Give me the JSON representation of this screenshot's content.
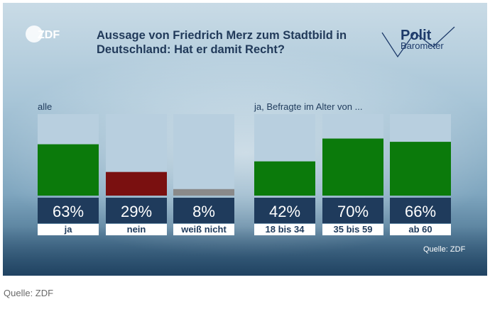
{
  "header": {
    "broadcaster": "ZDF",
    "title": "Aussage von Friedrich Merz zum Stadtbild in Deutschland: Hat er damit Recht?",
    "title_line1": "Aussage von Friedrich Merz zum Stadtbild in",
    "title_line2": "Deutschland: Hat er damit Recht?",
    "program_logo": {
      "line1": "Polit",
      "line2": "Barometer"
    }
  },
  "source_inner": "Quelle: ZDF",
  "caption_source": "Quelle: ZDF",
  "colors": {
    "yes": "#0b7a0b",
    "no": "#7a1010",
    "dont_know": "#8a8a8a",
    "track": "#b8cfdf",
    "value_box": "#1f3b5c"
  },
  "chart_data": {
    "type": "bar",
    "ylim": [
      0,
      100
    ],
    "groups": [
      {
        "label": "alle",
        "bars": [
          {
            "category": "ja",
            "value": 63,
            "value_label": "63%",
            "color": "#0b7a0b"
          },
          {
            "category": "nein",
            "value": 29,
            "value_label": "29%",
            "color": "#7a1010"
          },
          {
            "category": "weiß nicht",
            "value": 8,
            "value_label": "8%",
            "color": "#8a8a8a"
          }
        ]
      },
      {
        "label": "ja, Befragte im Alter von ...",
        "bars": [
          {
            "category": "18 bis 34",
            "value": 42,
            "value_label": "42%",
            "color": "#0b7a0b"
          },
          {
            "category": "35 bis 59",
            "value": 70,
            "value_label": "70%",
            "color": "#0b7a0b"
          },
          {
            "category": "ab 60",
            "value": 66,
            "value_label": "66%",
            "color": "#0b7a0b"
          }
        ]
      }
    ]
  }
}
